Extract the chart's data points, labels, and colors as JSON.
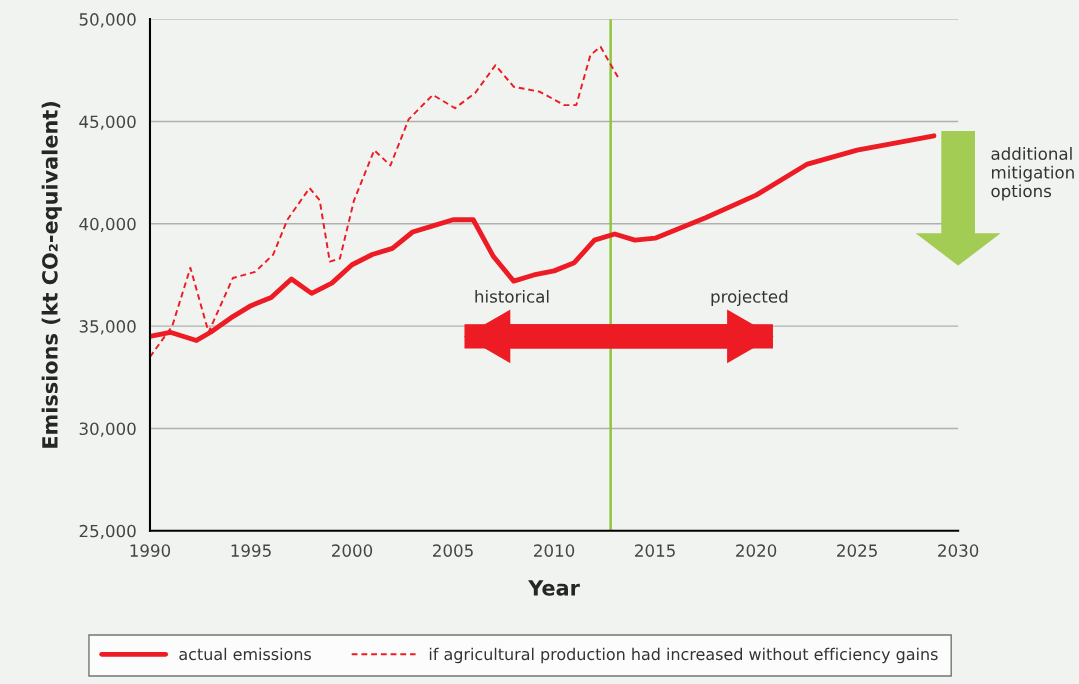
{
  "chart_data": {
    "type": "line",
    "xlabel": "Year",
    "ylabel": "Emissions (kt CO₂-equivalent)",
    "xlim": [
      1990,
      2030
    ],
    "xticks": [
      1990,
      1995,
      2000,
      2005,
      2010,
      2015,
      2020,
      2025,
      2030
    ],
    "ylim": [
      25000,
      50000
    ],
    "yticks": [
      {
        "value": 25000,
        "label": "25,000"
      },
      {
        "value": 30000,
        "label": "30,000"
      },
      {
        "value": 35000,
        "label": "35,000"
      },
      {
        "value": 40000,
        "label": "40,000"
      },
      {
        "value": 45000,
        "label": "45,000"
      },
      {
        "value": 50000,
        "label": "50,000"
      }
    ],
    "grid": "y",
    "legend": "bottom",
    "series": [
      {
        "name": "actual emissions",
        "color": "#ed1c24",
        "line_style": "solid",
        "x": [
          1990,
          1991,
          1992.3,
          1993,
          1994,
          1995,
          1996,
          1997,
          1998,
          1999,
          2000,
          2001,
          2002,
          2003,
          2004,
          2005,
          2006,
          2007,
          2008,
          2009,
          2010,
          2011,
          2012,
          2013,
          2014,
          2015,
          2017.5,
          2020,
          2022.5,
          2025,
          2028.8
        ],
        "values": [
          34500,
          34700,
          34300,
          34700,
          35400,
          36000,
          36400,
          37300,
          36600,
          37100,
          38000,
          38500,
          38800,
          39600,
          39900,
          40200,
          40200,
          38400,
          37200,
          37500,
          37700,
          38100,
          39200,
          39500,
          39200,
          39300,
          40300,
          41400,
          42900,
          43600,
          44300
        ]
      },
      {
        "name": "if agricultural production had increased without efficiency gains",
        "color": "#ed1c24",
        "line_style": "dashed",
        "x": [
          1990,
          1991.1,
          1992,
          1992.9,
          1994.1,
          1995.2,
          1996.1,
          1996.8,
          1997.9,
          1998.4,
          1998.9,
          1999.4,
          2000.1,
          2001.1,
          2001.9,
          2002.8,
          2004,
          2005.1,
          2006.1,
          2007.1,
          2008,
          2009.3,
          2010.5,
          2011.1,
          2011.8,
          2012.3,
          2013.2
        ],
        "values": [
          33500,
          35000,
          37850,
          34700,
          37350,
          37650,
          38500,
          40200,
          41750,
          41150,
          38150,
          38300,
          41150,
          43600,
          42850,
          45100,
          46300,
          45650,
          46400,
          47750,
          46700,
          46450,
          45800,
          45800,
          48250,
          48650,
          47100
        ]
      }
    ],
    "ref_lines": [
      {
        "axis": "x",
        "value": 2012.8,
        "color": "#8dc63f",
        "line_style": "solid"
      }
    ],
    "annotations": [
      "historical",
      "projected",
      "additional\nmitigation\noptions"
    ]
  }
}
